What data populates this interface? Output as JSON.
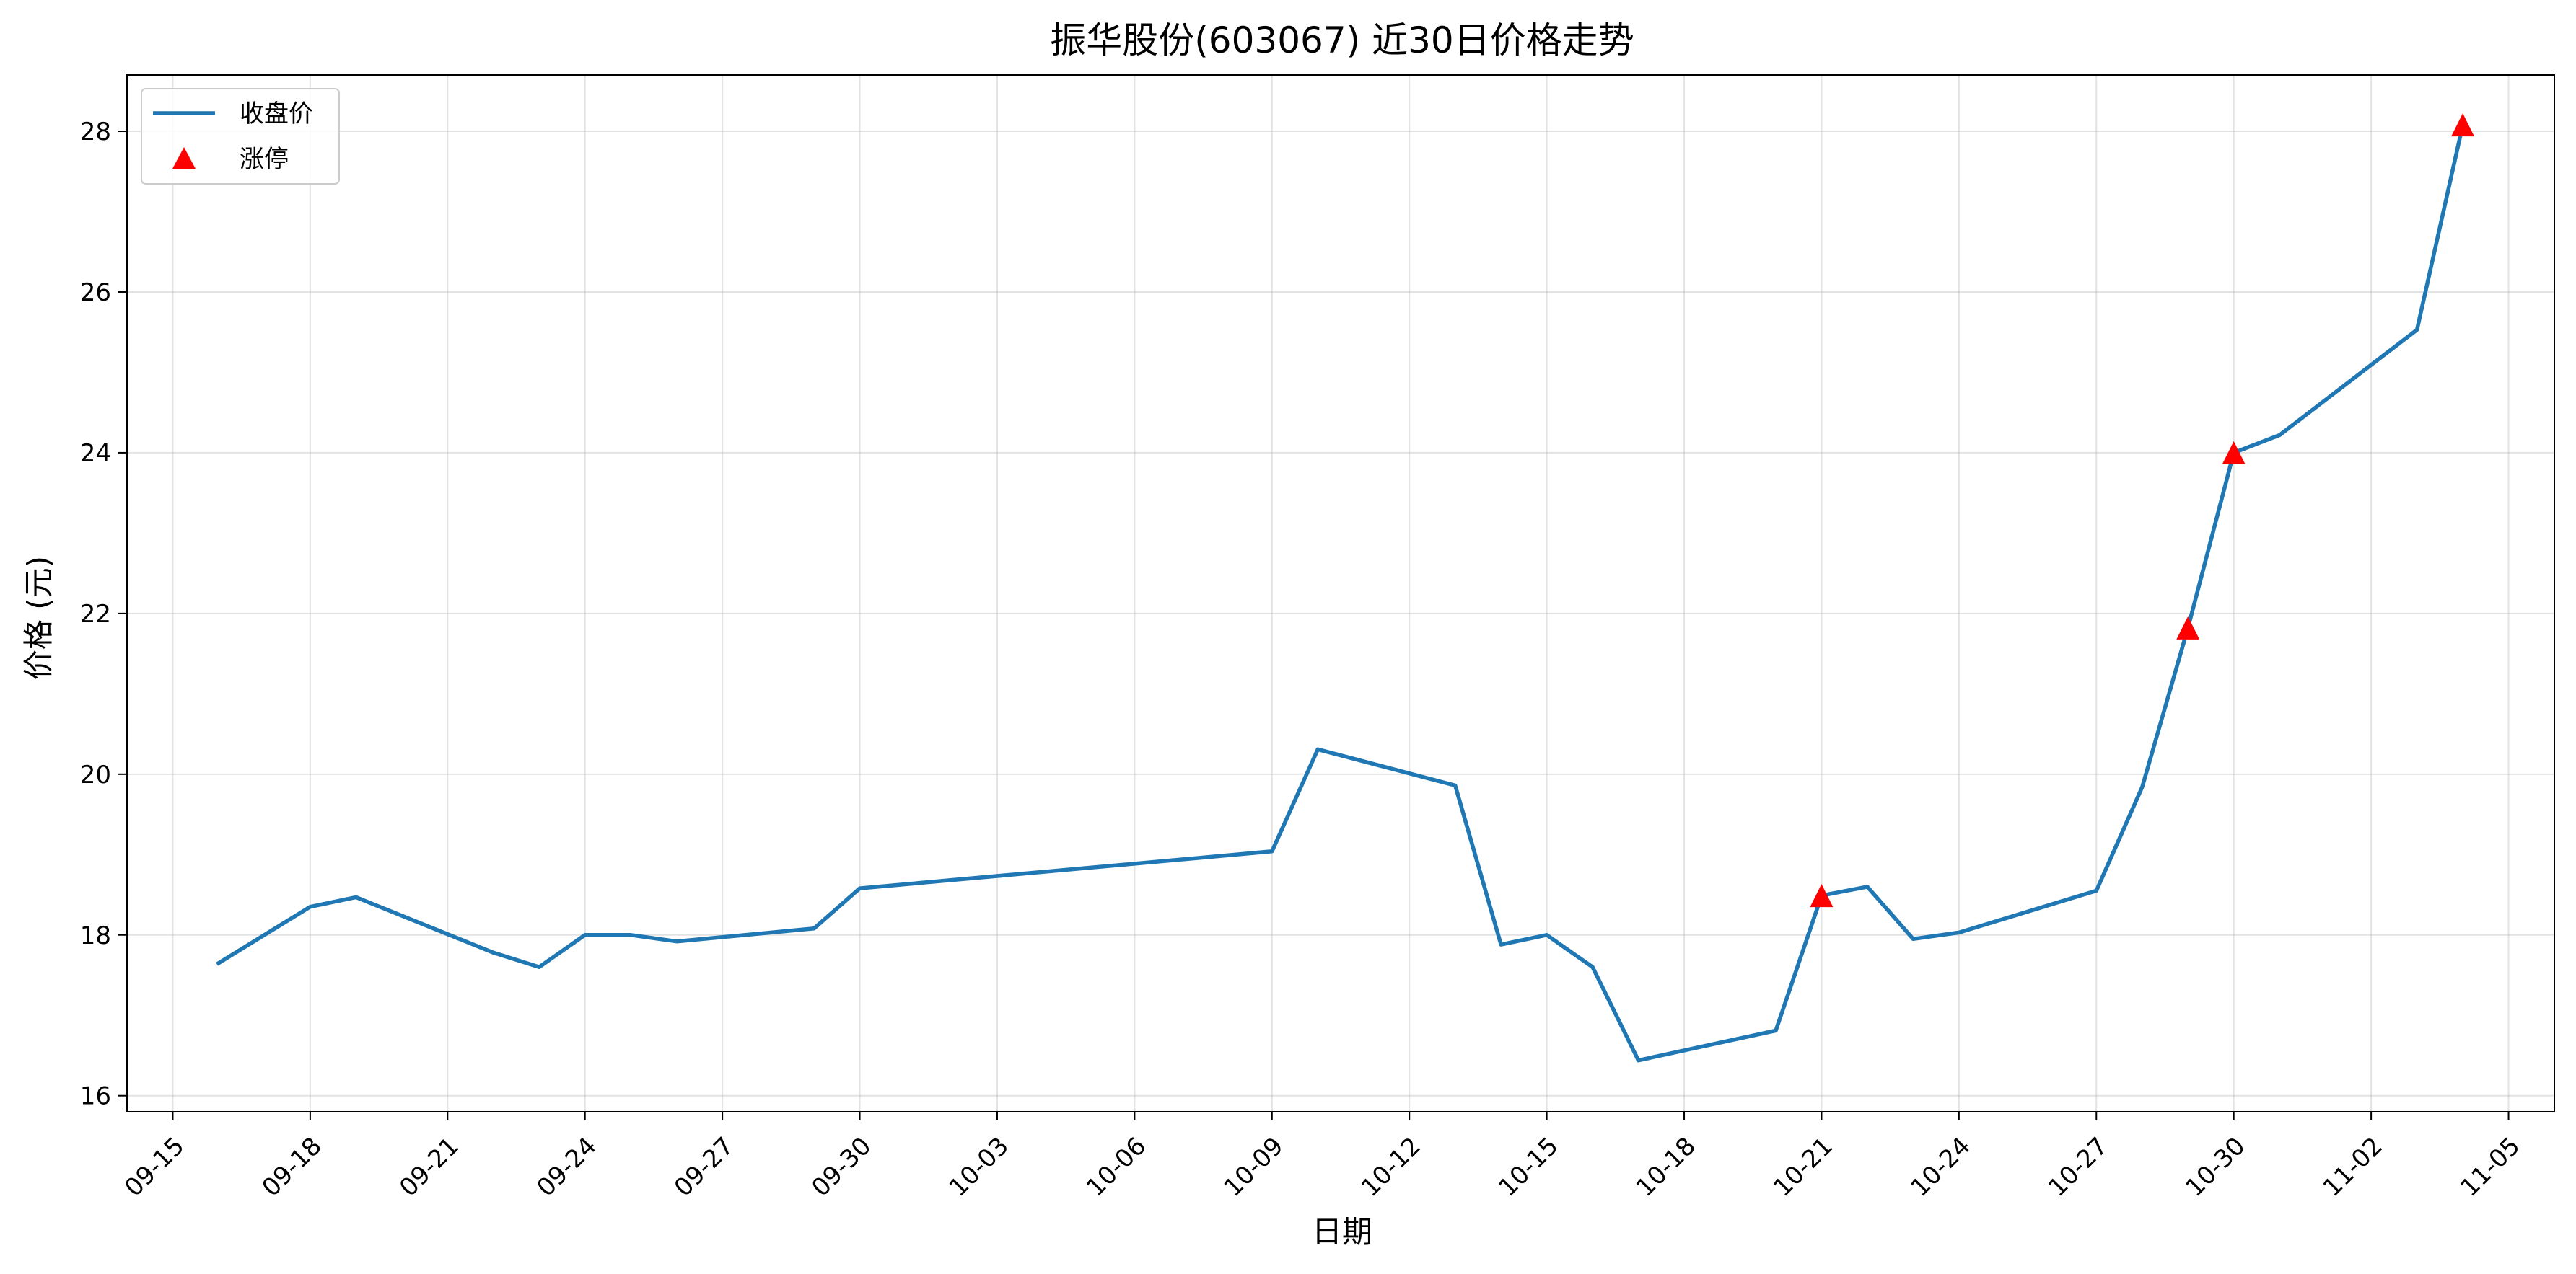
{
  "chart_data": {
    "type": "line",
    "title": "振华股份(603067) 近30日价格走势",
    "xlabel": "日期",
    "ylabel": "价格 (元)",
    "grid": true,
    "legend_position": "top-left",
    "x_ticks": [
      "09-15",
      "09-18",
      "09-21",
      "09-24",
      "09-27",
      "09-30",
      "10-03",
      "10-06",
      "10-09",
      "10-12",
      "10-15",
      "10-18",
      "10-21",
      "10-24",
      "10-27",
      "10-30",
      "11-02",
      "11-05"
    ],
    "y_ticks": [
      16,
      18,
      20,
      22,
      24,
      26,
      28
    ],
    "xlim": [
      "09-14",
      "11-06"
    ],
    "ylim": [
      15.8,
      28.7
    ],
    "series": [
      {
        "name": "收盘价",
        "type": "line",
        "color": "#1f77b4",
        "x": [
          "09-16",
          "09-18",
          "09-19",
          "09-22",
          "09-23",
          "09-24",
          "09-25",
          "09-26",
          "09-29",
          "09-30",
          "10-09",
          "10-10",
          "10-13",
          "10-14",
          "10-15",
          "10-16",
          "10-17",
          "10-20",
          "10-21",
          "10-22",
          "10-23",
          "10-24",
          "10-27",
          "10-28",
          "10-29",
          "10-30",
          "10-31",
          "11-03",
          "11-04"
        ],
        "y": [
          17.65,
          18.35,
          18.47,
          17.78,
          17.6,
          18.0,
          18.0,
          17.92,
          18.08,
          18.58,
          19.04,
          20.31,
          19.86,
          17.88,
          18.0,
          17.6,
          16.44,
          16.81,
          18.49,
          18.6,
          17.95,
          18.03,
          18.55,
          19.84,
          21.82,
          24.0,
          24.22,
          25.53,
          28.08
        ]
      },
      {
        "name": "涨停",
        "type": "scatter",
        "marker": "triangle-up",
        "color": "#ff0000",
        "x": [
          "10-21",
          "10-29",
          "10-30",
          "11-04"
        ],
        "y": [
          18.49,
          21.82,
          24.0,
          28.08
        ]
      }
    ]
  }
}
